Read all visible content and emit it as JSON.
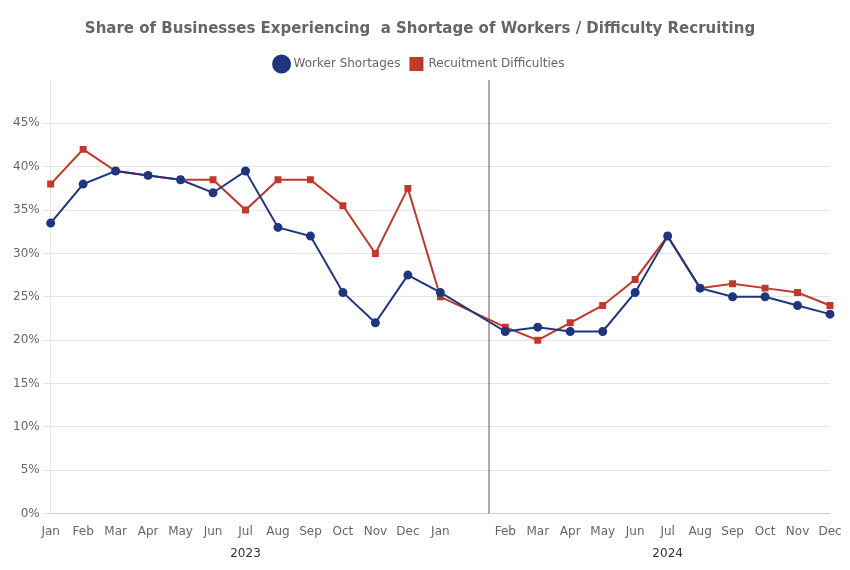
{
  "chart_data": {
    "type": "line",
    "title": "Share of Businesses Experiencing  a Shortage of Workers / Difficulty Recruiting",
    "categories": [
      "Jan",
      "Feb",
      "Mar",
      "Apr",
      "May",
      "Jun",
      "Jul",
      "Aug",
      "Sep",
      "Oct",
      "Nov",
      "Dec",
      "Jan",
      null,
      "Feb",
      "Mar",
      "Apr",
      "May",
      "Jun",
      "Jul",
      "Aug",
      "Sep",
      "Oct",
      "Nov",
      "Dec"
    ],
    "series": [
      {
        "name": "Worker Shortages",
        "color": "#1f3580",
        "marker": "circle",
        "values": [
          33.5,
          38.0,
          39.5,
          39.0,
          38.5,
          37.0,
          39.5,
          33.0,
          32.0,
          25.5,
          22.0,
          27.5,
          25.5,
          null,
          21.0,
          21.5,
          21.0,
          21.0,
          25.5,
          32.0,
          26.0,
          25.0,
          25.0,
          24.0,
          23.0
        ]
      },
      {
        "name": "Recuitment Difficulties",
        "color": "#c0392b",
        "marker": "square",
        "values": [
          38.0,
          42.0,
          39.5,
          39.0,
          38.5,
          38.5,
          35.0,
          38.5,
          38.5,
          35.5,
          30.0,
          37.5,
          25.0,
          null,
          21.5,
          20.0,
          22.0,
          24.0,
          27.0,
          32.0,
          26.0,
          26.5,
          26.0,
          25.5,
          24.0
        ]
      }
    ],
    "ylim": [
      0,
      50
    ],
    "yticks": [
      {
        "value": 0,
        "label": "0%"
      },
      {
        "value": 5,
        "label": "5%"
      },
      {
        "value": 10,
        "label": "10%"
      },
      {
        "value": 15,
        "label": "15%"
      },
      {
        "value": 20,
        "label": "20%"
      },
      {
        "value": 25,
        "label": "25%"
      },
      {
        "value": 30,
        "label": "30%"
      },
      {
        "value": 35,
        "label": "35%"
      },
      {
        "value": 40,
        "label": "40%"
      },
      {
        "value": 45,
        "label": "45%"
      }
    ],
    "grid": "y",
    "legend": "top",
    "annotations": [
      "2023",
      "2024"
    ]
  }
}
